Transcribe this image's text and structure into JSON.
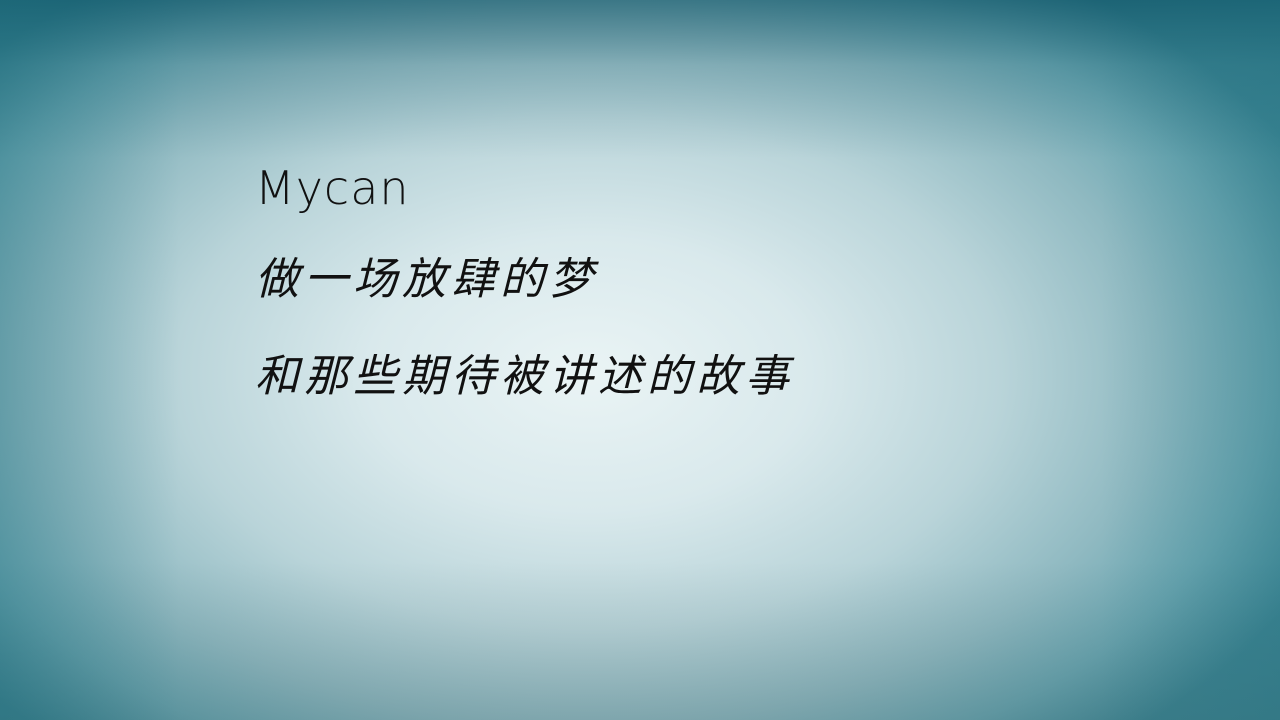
{
  "slide": {
    "title": "Mycan",
    "lines": [
      "做一场放肆的梦",
      "和那些期待被讲述的故事"
    ]
  },
  "colors": {
    "background_center": "#eaf4f5",
    "background_edge": "#3f8896",
    "text": "#111111"
  }
}
